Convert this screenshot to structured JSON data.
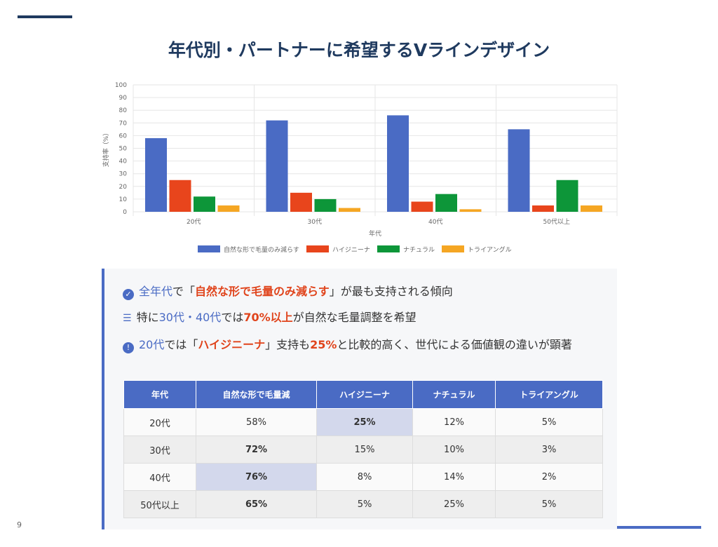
{
  "title": "年代別・パートナーに希望するVラインデザイン",
  "page_number": "9",
  "chart_data": {
    "type": "bar",
    "categories": [
      "20代",
      "30代",
      "40代",
      "50代以上"
    ],
    "series": [
      {
        "name": "自然な形で毛量のみ減らす",
        "color": "#4a6bc4",
        "values": [
          58,
          72,
          76,
          65
        ]
      },
      {
        "name": "ハイジニーナ",
        "color": "#e8451c",
        "values": [
          25,
          15,
          8,
          5
        ]
      },
      {
        "name": "ナチュラル",
        "color": "#0d9639",
        "values": [
          12,
          10,
          14,
          25
        ]
      },
      {
        "name": "トライアングル",
        "color": "#f5a623",
        "values": [
          5,
          3,
          2,
          5
        ]
      }
    ],
    "xlabel": "年代",
    "ylabel": "支持率（%）",
    "ylim": [
      0,
      100
    ],
    "yticks": [
      0,
      10,
      20,
      30,
      40,
      50,
      60,
      70,
      80,
      90,
      100
    ],
    "grid": true,
    "legend": "bottom"
  },
  "points": {
    "p1": {
      "a": "全年代",
      "b": "で「",
      "c": "自然な形で毛量のみ減らす",
      "d": "」が最も支持される傾向"
    },
    "p2": {
      "a": "特に",
      "b": "30代・40代",
      "c": "では",
      "d": "70%以上",
      "e": "が自然な毛量調整を希望"
    },
    "p3": {
      "a": "20代",
      "b": "では「",
      "c": "ハイジニーナ",
      "d": "」支持も",
      "e": "25%",
      "f": "と比較的高く、世代による価値観の違いが顕著"
    }
  },
  "table": {
    "headers": [
      "年代",
      "自然な形で毛量減",
      "ハイジニーナ",
      "ナチュラル",
      "トライアングル"
    ],
    "rows": [
      [
        "20代",
        "58%",
        "25%",
        "12%",
        "5%"
      ],
      [
        "30代",
        "72%",
        "15%",
        "10%",
        "3%"
      ],
      [
        "40代",
        "76%",
        "8%",
        "14%",
        "2%"
      ],
      [
        "50代以上",
        "65%",
        "5%",
        "25%",
        "5%"
      ]
    ]
  }
}
